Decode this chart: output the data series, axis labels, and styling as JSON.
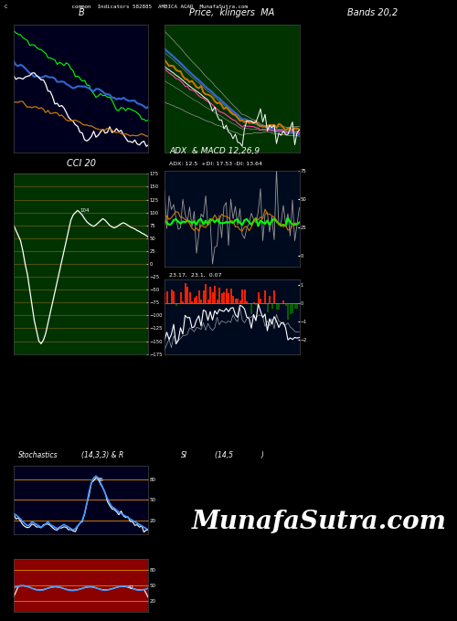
{
  "title_text": "C                    common  Indicators 582885  AMBICA AGAR  MunafaSutra.com",
  "bg_color": "#000000",
  "panel_b_bg": "#00001e",
  "panel_price_bg": "#003300",
  "panel_cci_bg": "#003300",
  "panel_adx_bg": "#000a1e",
  "panel_macd_bg": "#000a1e",
  "panel_stoch_bg": "#00001e",
  "panel_si_bg": "#8b0000",
  "labels": {
    "B": "B",
    "Price": "Price,  klingers  MA",
    "Bands": "Bands 20,2",
    "CCI": "CCI 20",
    "ADX_MACD": "ADX  & MACD 12,26,9",
    "ADX_vals": "ADX: 12.5  +DI: 17.53 -DI: 13.64",
    "MACD_vals": "23.17,  23.1,  0.07",
    "Stoch": "Stochastics",
    "Stoch_params": "(14,3,3) & R",
    "SI": "SI",
    "SI_params": "(14,5             )"
  },
  "watermark": "MunafaSutra.com",
  "lc_white": "#ffffff",
  "lc_orange": "#cc7700",
  "lc_blue": "#3366cc",
  "lc_bright_blue": "#4499ff",
  "lc_green": "#00ff00",
  "lc_yellow": "#ffcc00",
  "lc_gray": "#999999",
  "lc_red": "#ff2200",
  "lc_pink": "#ff44aa",
  "lc_dark_green": "#004400",
  "grid_color": "#8b6914",
  "cci_annotation": "104"
}
